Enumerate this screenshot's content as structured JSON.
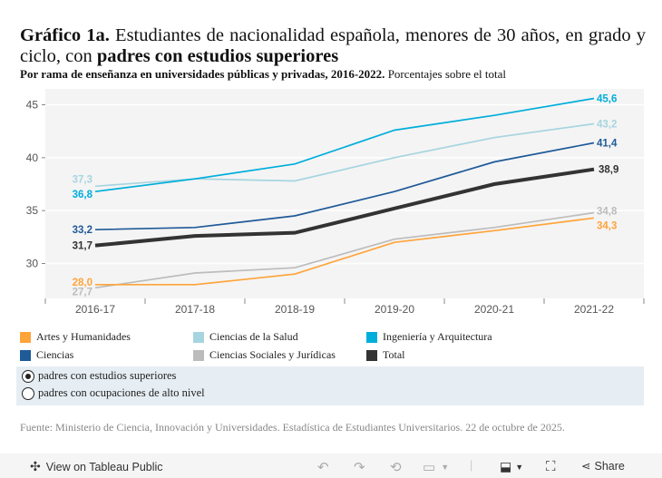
{
  "title": {
    "prefix": "Gráfico 1a.",
    "text": "Estudiantes de nacionalidad española, menores de 30 años, en grado y ciclo, con",
    "emphasis": "padres con estudios superiores"
  },
  "subtitle": {
    "bold": "Por rama de enseñanza en universidades públicas y privadas, 2016-2022.",
    "normal": "Porcentajes sobre el total"
  },
  "chart_data": {
    "type": "line",
    "x": [
      "2016-17",
      "2017-18",
      "2018-19",
      "2019-20",
      "2020-21",
      "2021-22"
    ],
    "ylim": [
      26.7,
      46.5
    ],
    "yticks": [
      30,
      35,
      40,
      45
    ],
    "grid": true,
    "series": [
      {
        "name": "Ciencias de la Salud",
        "color": "#a6d5e0",
        "values": [
          37.3,
          38.0,
          37.8,
          40.0,
          41.9,
          43.2
        ],
        "start_label": "37,3",
        "end_label": "43,2"
      },
      {
        "name": "Ingeniería y Arquitectura",
        "color": "#00aedb",
        "values": [
          36.8,
          38.0,
          39.4,
          42.6,
          44.0,
          45.6
        ],
        "start_label": "36,8",
        "end_label": "45,6"
      },
      {
        "name": "Ciencias",
        "color": "#1f5a99",
        "values": [
          33.2,
          33.4,
          34.5,
          36.8,
          39.6,
          41.4
        ],
        "start_label": "33,2",
        "end_label": "41,4"
      },
      {
        "name": "Ciencias Sociales y Jurídicas",
        "color": "#bcbcbc",
        "values": [
          27.7,
          29.1,
          29.6,
          32.3,
          33.4,
          34.8
        ],
        "start_label": "27,7",
        "end_label": "34,8"
      },
      {
        "name": "Artes y Humanidades",
        "color": "#ffa43b",
        "values": [
          28.0,
          28.0,
          29.0,
          32.0,
          33.1,
          34.3
        ],
        "start_label": "28,0",
        "end_label": "34,3"
      },
      {
        "name": "Total",
        "color": "#333333",
        "values": [
          31.7,
          32.6,
          32.9,
          35.2,
          37.5,
          38.9
        ],
        "start_label": "31,7",
        "end_label": "38,9"
      }
    ],
    "legend": "bottom"
  },
  "legend": [
    {
      "label": "Artes y Humanidades",
      "color": "#ffa43b"
    },
    {
      "label": "Ciencias de la Salud",
      "color": "#a6d5e0"
    },
    {
      "label": "Ingeniería y Arquitectura",
      "color": "#00aedb"
    },
    {
      "label": "Ciencias",
      "color": "#1f5a99"
    },
    {
      "label": "Ciencias Sociales y Jurídicas",
      "color": "#bcbcbc"
    },
    {
      "label": "Total",
      "color": "#333333"
    }
  ],
  "filter": {
    "options": [
      "padres con estudios superiores",
      "padres con ocupaciones de alto nivel"
    ],
    "selected": 0
  },
  "source": "Fuente: Ministerio de Ciencia, Innovación y Universidades. Estadística de Estudiantes Universitarios. 22 de octubre de 2025.",
  "toolbar": {
    "view_label": "View on Tableau Public",
    "share_label": "Share"
  }
}
